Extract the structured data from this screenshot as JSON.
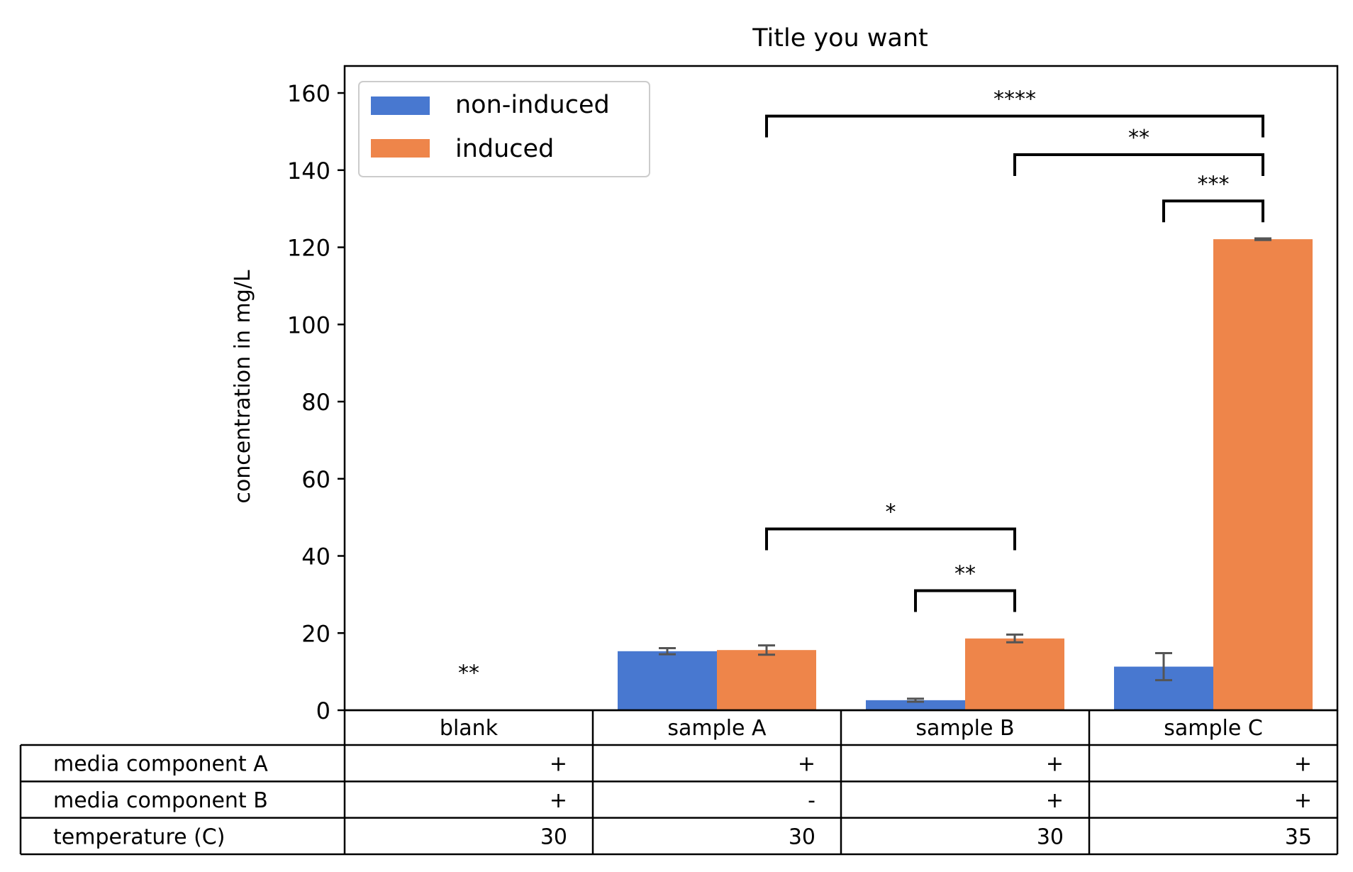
{
  "chart_data": {
    "type": "bar",
    "title": "Title you want",
    "xlabel": "",
    "ylabel": "concentration in mg/L",
    "ylim": [
      0,
      167
    ],
    "yticks": [
      0,
      20,
      40,
      60,
      80,
      100,
      120,
      140,
      160
    ],
    "grid": false,
    "legend": "top-left",
    "categories": [
      "blank",
      "sample A",
      "sample B",
      "sample C"
    ],
    "series": [
      {
        "name": "non-induced",
        "color": "#4878d0",
        "values": [
          0,
          15.3,
          2.6,
          11.3
        ],
        "errors": [
          0,
          0.8,
          0.4,
          3.5
        ]
      },
      {
        "name": "induced",
        "color": "#ee854a",
        "values": [
          0,
          15.6,
          18.6,
          122.1
        ],
        "errors": [
          0,
          1.2,
          1.0,
          0.2
        ]
      }
    ],
    "annotations": [
      {
        "label": "**",
        "type": "text",
        "category": 0,
        "y": 10
      },
      {
        "label": "**",
        "type": "bracket",
        "from": [
          2,
          0
        ],
        "to": [
          2,
          1
        ],
        "y": 31
      },
      {
        "label": "*",
        "type": "bracket",
        "from": [
          1,
          1
        ],
        "to": [
          2,
          1
        ],
        "y": 47
      },
      {
        "label": "***",
        "type": "bracket",
        "from": [
          3,
          0
        ],
        "to": [
          3,
          1
        ],
        "y": 132
      },
      {
        "label": "**",
        "type": "bracket",
        "from": [
          2,
          1
        ],
        "to": [
          3,
          1
        ],
        "y": 144
      },
      {
        "label": "****",
        "type": "bracket",
        "from": [
          1,
          1
        ],
        "to": [
          3,
          1
        ],
        "y": 154
      }
    ],
    "table": {
      "rows": [
        {
          "label": "media component A",
          "cells": [
            "+",
            "+",
            "+",
            "+"
          ]
        },
        {
          "label": "media component B",
          "cells": [
            "+",
            "-",
            "+",
            "+"
          ]
        },
        {
          "label": "temperature (C)",
          "cells": [
            "30",
            "30",
            "30",
            "35"
          ]
        }
      ]
    }
  }
}
